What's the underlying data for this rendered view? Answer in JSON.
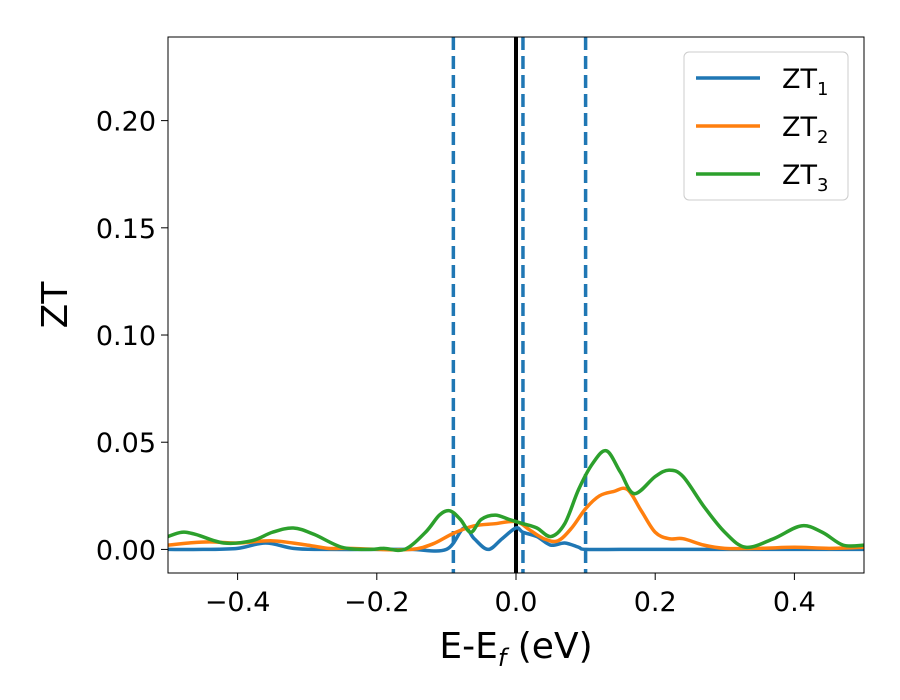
{
  "chart_data": {
    "type": "line",
    "xlabel": {
      "main": "E-E",
      "sub": "f",
      "unit": " (eV)"
    },
    "ylabel": "ZT",
    "xlim": [
      -0.5,
      0.5
    ],
    "ylim": [
      -0.011,
      0.239
    ],
    "xticks": [
      -0.4,
      -0.2,
      0.0,
      0.2,
      0.4
    ],
    "xtick_labels": [
      "−0.4",
      "−0.2",
      "0.0",
      "0.2",
      "0.4"
    ],
    "yticks": [
      0.0,
      0.05,
      0.1,
      0.15,
      0.2
    ],
    "ytick_labels": [
      "0.00",
      "0.05",
      "0.10",
      "0.15",
      "0.20"
    ],
    "grid": false,
    "legend_position": "top-right",
    "vertical_lines": [
      {
        "x": -0.09,
        "style": "dashed",
        "color": "#1f77b4"
      },
      {
        "x": 0.0,
        "style": "solid",
        "color": "#000000"
      },
      {
        "x": 0.01,
        "style": "dashed",
        "color": "#1f77b4"
      },
      {
        "x": 0.1,
        "style": "dashed",
        "color": "#1f77b4"
      }
    ],
    "series": [
      {
        "name": "ZT",
        "sub": "1",
        "color": "#1f77b4",
        "x": [
          -0.5,
          -0.45,
          -0.4,
          -0.36,
          -0.32,
          -0.28,
          -0.2,
          -0.15,
          -0.1,
          -0.075,
          -0.06,
          -0.04,
          -0.02,
          0.0,
          0.01,
          0.03,
          0.05,
          0.07,
          0.09,
          0.1,
          0.15,
          0.2,
          0.3,
          0.4,
          0.5
        ],
        "y": [
          0.0,
          0.0,
          0.0005,
          0.003,
          0.0005,
          0.0,
          0.0,
          0.0,
          0.0,
          0.01,
          0.005,
          0.0,
          0.005,
          0.01,
          0.008,
          0.006,
          0.002,
          0.003,
          0.001,
          0.0,
          0.0,
          0.0,
          0.0,
          0.0,
          0.0
        ]
      },
      {
        "name": "ZT",
        "sub": "2",
        "color": "#ff7f0e",
        "x": [
          -0.5,
          -0.47,
          -0.44,
          -0.4,
          -0.35,
          -0.3,
          -0.27,
          -0.24,
          -0.2,
          -0.15,
          -0.12,
          -0.09,
          -0.06,
          -0.03,
          0.0,
          0.02,
          0.04,
          0.06,
          0.08,
          0.1,
          0.12,
          0.14,
          0.16,
          0.18,
          0.2,
          0.22,
          0.24,
          0.27,
          0.3,
          0.35,
          0.4,
          0.45,
          0.5
        ],
        "y": [
          0.002,
          0.003,
          0.0035,
          0.003,
          0.004,
          0.002,
          0.0005,
          0.0005,
          0.0,
          0.0,
          0.0025,
          0.0075,
          0.011,
          0.012,
          0.013,
          0.009,
          0.005,
          0.004,
          0.01,
          0.019,
          0.025,
          0.027,
          0.028,
          0.018,
          0.008,
          0.005,
          0.005,
          0.002,
          0.0005,
          0.0005,
          0.001,
          0.0005,
          0.001
        ]
      },
      {
        "name": "ZT",
        "sub": "3",
        "color": "#2ca02c",
        "x": [
          -0.5,
          -0.48,
          -0.46,
          -0.42,
          -0.38,
          -0.35,
          -0.32,
          -0.29,
          -0.25,
          -0.21,
          -0.19,
          -0.16,
          -0.13,
          -0.11,
          -0.095,
          -0.08,
          -0.065,
          -0.05,
          -0.03,
          -0.01,
          0.01,
          0.03,
          0.05,
          0.07,
          0.09,
          0.11,
          0.13,
          0.15,
          0.17,
          0.2,
          0.22,
          0.24,
          0.27,
          0.3,
          0.33,
          0.37,
          0.41,
          0.44,
          0.47,
          0.5
        ],
        "y": [
          0.006,
          0.008,
          0.007,
          0.003,
          0.004,
          0.008,
          0.01,
          0.007,
          0.001,
          0.0,
          0.0005,
          0.0,
          0.008,
          0.016,
          0.018,
          0.014,
          0.008,
          0.014,
          0.016,
          0.014,
          0.012,
          0.01,
          0.006,
          0.012,
          0.028,
          0.04,
          0.046,
          0.036,
          0.026,
          0.034,
          0.037,
          0.034,
          0.02,
          0.008,
          0.001,
          0.005,
          0.011,
          0.008,
          0.002,
          0.002
        ]
      }
    ]
  }
}
